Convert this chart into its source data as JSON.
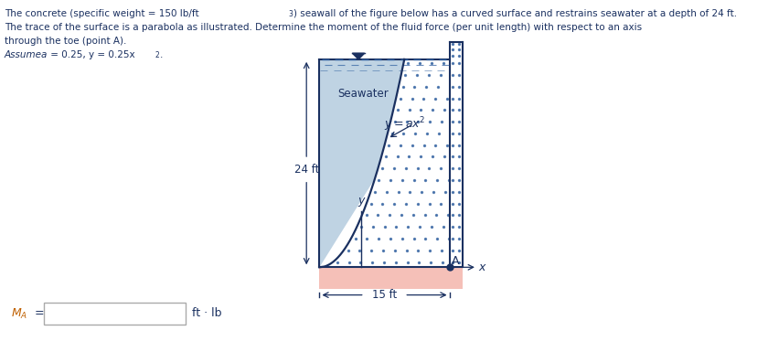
{
  "seawater_label": "Seawater",
  "depth_label": "24 ft",
  "width_label": "15 ft",
  "y_label": "y",
  "A_label": "A",
  "x_label": "x",
  "MA_label": "M_A =",
  "ft_lb_label": "ft · lb",
  "water_color": "#b8cfe0",
  "concrete_dot_color": "#3060a0",
  "base_color": "#f5c0b8",
  "line_color": "#1a3060",
  "text_color": "#1a3060",
  "dash_color": "#3060a0",
  "text_lines": [
    "The concrete (specific weight = 150 lb/ft³) seawall of the figure below has a curved surface and restrains seawater at a depth of 24 ft.",
    "The trace of the surface is a parabola as illustrated. Determine the moment of the fluid force (per unit length) with respect to an axis",
    "through the toe (point A).",
    "Assume a = 0.25, y = 0.25x²."
  ]
}
